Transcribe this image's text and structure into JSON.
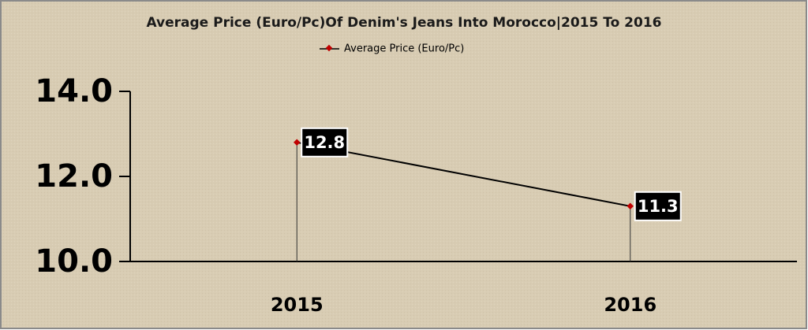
{
  "chart_data": {
    "type": "line",
    "title": "Average Price (Euro/Pc)Of Denim's Jeans Into Morocco|2015 To 2016",
    "categories": [
      "2015",
      "2016"
    ],
    "series": [
      {
        "name": "Average Price (Euro/Pc)",
        "color": "#000000",
        "marker_color": "#c00000",
        "values": [
          12.8,
          11.3
        ]
      }
    ],
    "ylim": [
      10,
      14
    ],
    "yticks": [
      {
        "value": 10,
        "label": "10.0"
      },
      {
        "value": 12,
        "label": "12.0"
      },
      {
        "value": 14,
        "label": "14.0"
      }
    ],
    "drop_lines": true,
    "legend": "top"
  }
}
